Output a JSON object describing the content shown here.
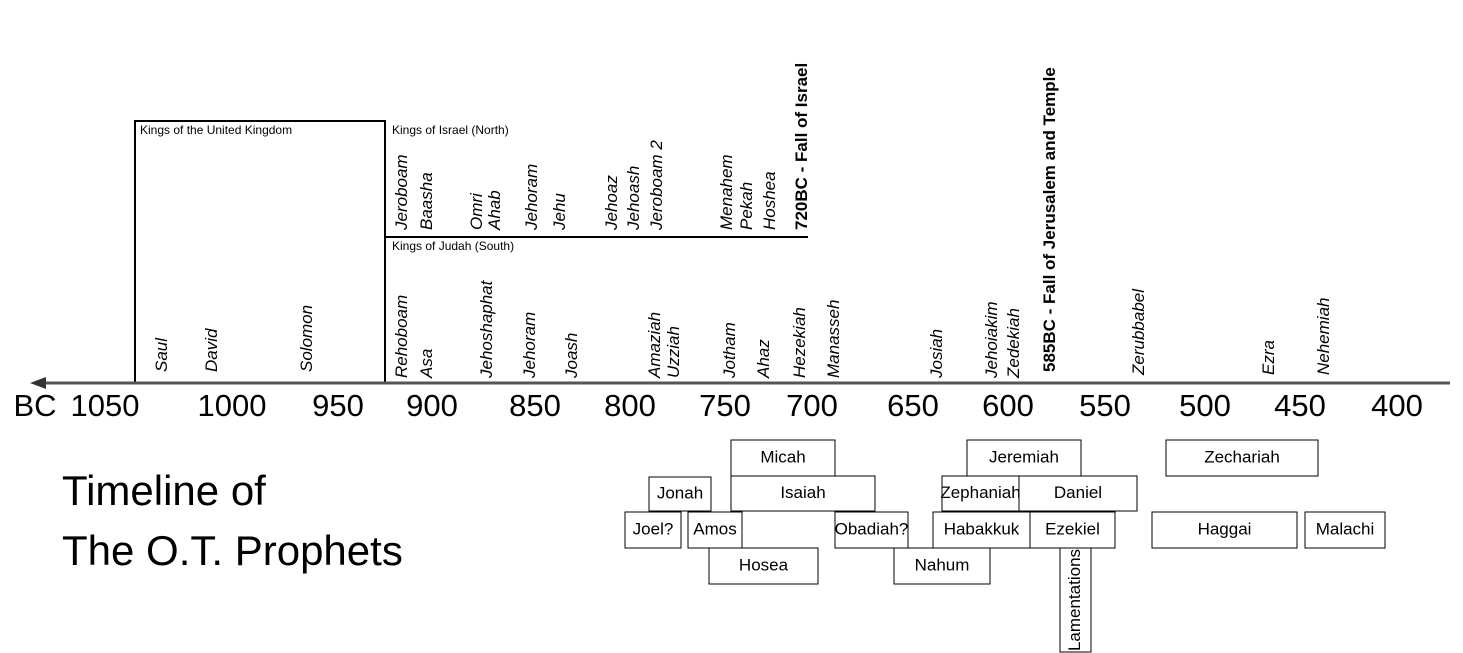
{
  "title": [
    "Timeline of",
    "The O.T. Prophets"
  ],
  "era_prefix": "BC",
  "years": [
    "1050",
    "1000",
    "950",
    "900",
    "850",
    "800",
    "750",
    "700",
    "650",
    "600",
    "550",
    "500",
    "450",
    "400"
  ],
  "united_kingdom": {
    "label": "Kings of the United Kingdom",
    "kings": [
      "Saul",
      "David",
      "Solomon"
    ]
  },
  "israel": {
    "label": "Kings of Israel (North)",
    "kings": [
      "Jeroboam",
      "Baasha",
      "Omri",
      "Ahab",
      "Jehoram",
      "Jehu",
      "Jehoaz",
      "Jehoash",
      "Jeroboam 2",
      "Menahem",
      "Pekah",
      "Hoshea"
    ],
    "fall": "720BC - Fall of Israel"
  },
  "judah": {
    "label": "Kings of Judah (South)",
    "kings": [
      "Rehoboam",
      "Asa",
      "Jehoshaphat",
      "Jehoram",
      "Joash",
      "Amaziah",
      "Uzziah",
      "Jotham",
      "Ahaz",
      "Hezekiah",
      "Manasseh",
      "Josiah",
      "Jehoiakim",
      "Zedekiah"
    ],
    "fall": "585BC - Fall of Jerusalem and Temple"
  },
  "leaders": [
    "Zerubbabel",
    "Ezra",
    "Nehemiah"
  ],
  "prophets": [
    "Micah",
    "Jonah",
    "Isaiah",
    "Joel?",
    "Amos",
    "Hosea",
    "Obadiah?",
    "Nahum",
    "Jeremiah",
    "Zephaniah",
    "Daniel",
    "Habakkuk",
    "Ezekiel",
    "Lamentations",
    "Zechariah",
    "Haggai",
    "Malachi"
  ]
}
